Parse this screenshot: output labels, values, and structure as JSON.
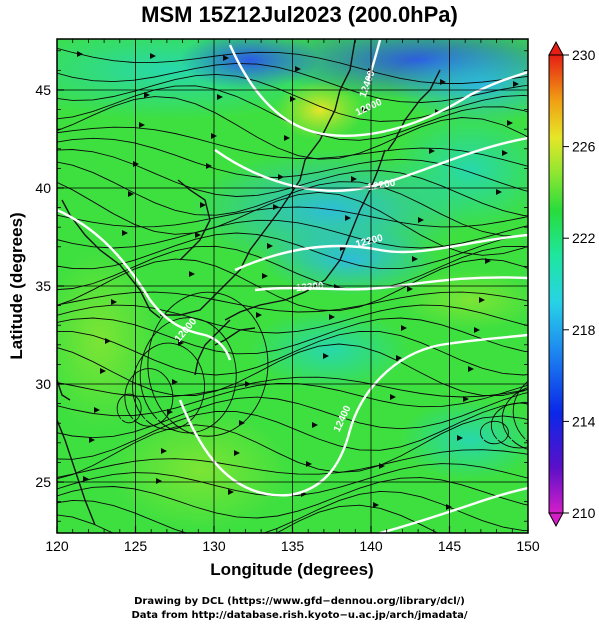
{
  "title": "MSM 15Z12Jul2023 (200.0hPa)",
  "xaxis": {
    "label": "Longitude (degrees)",
    "ticks": [
      "120",
      "125",
      "130",
      "135",
      "140",
      "145",
      "150"
    ],
    "range": [
      120,
      150
    ]
  },
  "yaxis": {
    "label": "Latitude  (degrees)",
    "ticks": [
      "25",
      "30",
      "35",
      "40",
      "45"
    ],
    "range": [
      22.4,
      47.6
    ]
  },
  "colorbar": {
    "range": [
      210,
      230
    ],
    "ticks": [
      "230",
      "226",
      "222",
      "218",
      "214",
      "210"
    ]
  },
  "contour_labels": [
    "12000",
    "12000",
    "12200",
    "12200",
    "12300",
    "12400",
    "12400"
  ],
  "footer": {
    "line1": "Drawing by DCL (https://www.gfd−dennou.org/library/dcl/)",
    "line2": "Data from http://database.rish.kyoto−u.ac.jp/arch/jmadata/"
  }
}
